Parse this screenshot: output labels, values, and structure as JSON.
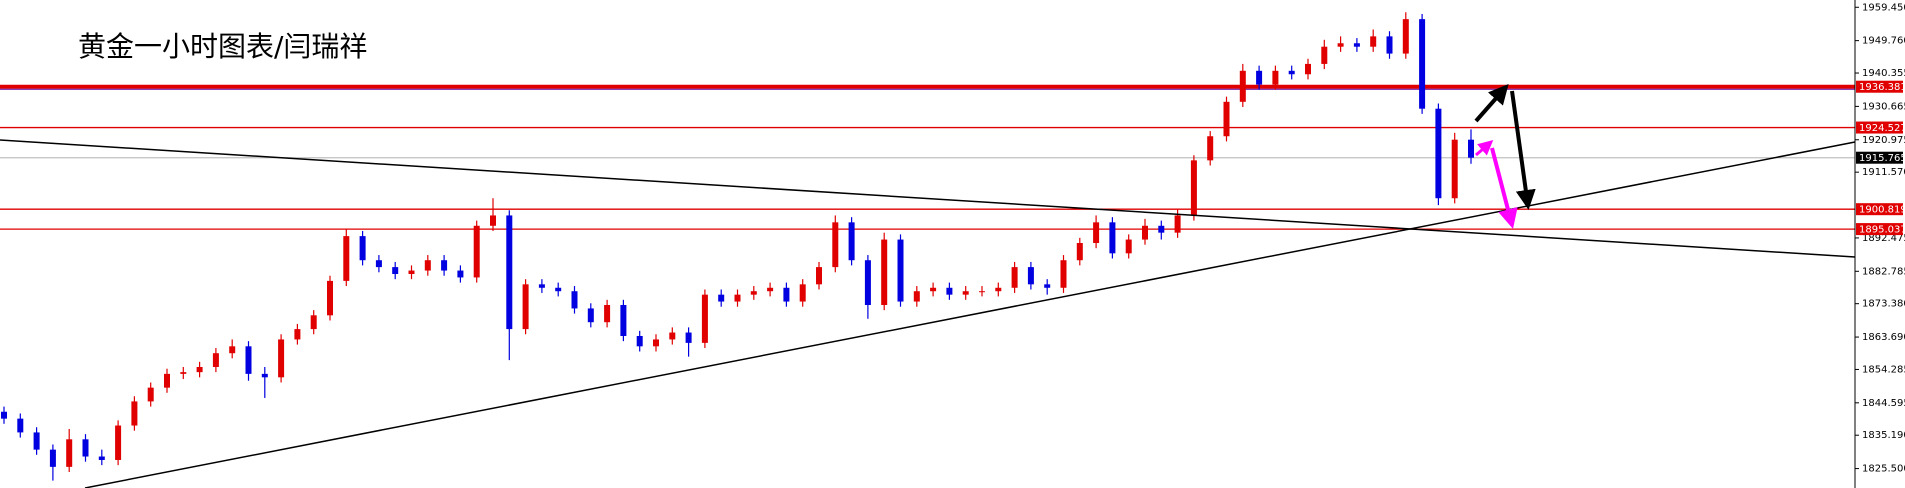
{
  "chart_data": {
    "type": "candlestick",
    "title": "黄金一小时图表/闫瑞祥",
    "up_color": "#e00000",
    "down_color": "#0000e0",
    "ylim": [
      1819.86,
      1961.56
    ],
    "yticks": [
      {
        "value": 1959.45,
        "label": "1959.450"
      },
      {
        "value": 1949.76,
        "label": "1949.760"
      },
      1940.355,
      1930.665,
      1920.975,
      {
        "value": 1911.57,
        "label": "1911.570"
      },
      1892.475,
      1882.785,
      {
        "value": 1873.38,
        "label": "1873.380"
      },
      {
        "value": 1863.69,
        "label": "1863.690"
      },
      1854.285,
      1844.595,
      {
        "value": 1835.19,
        "label": "1835.190"
      },
      {
        "value": 1825.5,
        "label": "1825.500"
      }
    ],
    "levels": [
      {
        "value": 1936.381,
        "color": "#e00000"
      },
      {
        "value": 1924.527,
        "color": "#e00000"
      },
      {
        "value": 1915.765,
        "color": "#000000"
      },
      {
        "value": 1900.819,
        "color": "#e00000"
      },
      {
        "value": 1895.037,
        "color": "#e00000"
      }
    ],
    "ohlc": [
      [
        1842,
        1843.5,
        1838.5,
        1840
      ],
      [
        1840,
        1841.5,
        1834.5,
        1836
      ],
      [
        1836,
        1837.5,
        1829.5,
        1831
      ],
      [
        1831,
        1832.5,
        1822,
        1826
      ],
      [
        1826,
        1837,
        1824.5,
        1834
      ],
      [
        1834,
        1835.5,
        1827.5,
        1829
      ],
      [
        1829,
        1831,
        1826.5,
        1828
      ],
      [
        1828,
        1839.5,
        1826.5,
        1838
      ],
      [
        1838,
        1846.5,
        1836.5,
        1845
      ],
      [
        1845,
        1850.5,
        1843.5,
        1849
      ],
      [
        1849,
        1854.5,
        1847.5,
        1853
      ],
      [
        1853,
        1855,
        1851.5,
        1853.5
      ],
      [
        1853.5,
        1856.5,
        1852,
        1855
      ],
      [
        1855,
        1860.5,
        1853.5,
        1859
      ],
      [
        1859,
        1863,
        1857.5,
        1861
      ],
      [
        1861,
        1862.5,
        1851,
        1853
      ],
      [
        1853,
        1855,
        1846,
        1852
      ],
      [
        1852,
        1864.5,
        1850.5,
        1863
      ],
      [
        1863,
        1867.5,
        1861.5,
        1866
      ],
      [
        1866,
        1871.5,
        1864.5,
        1870
      ],
      [
        1870,
        1881.5,
        1868.5,
        1880
      ],
      [
        1880,
        1895,
        1878.5,
        1893
      ],
      [
        1893,
        1894.5,
        1884.5,
        1886
      ],
      [
        1886,
        1887.5,
        1882.5,
        1884
      ],
      [
        1884,
        1885.5,
        1880.5,
        1882
      ],
      [
        1882,
        1884.5,
        1880.5,
        1883
      ],
      [
        1883,
        1887.5,
        1881.5,
        1886
      ],
      [
        1886,
        1887.5,
        1881.5,
        1883
      ],
      [
        1883,
        1884.5,
        1879.5,
        1881
      ],
      [
        1881,
        1897.5,
        1879.5,
        1896
      ],
      [
        1896,
        1904,
        1894.5,
        1899
      ],
      [
        1899,
        1900.5,
        1857,
        1866
      ],
      [
        1866,
        1880.5,
        1864.5,
        1879
      ],
      [
        1879,
        1880.5,
        1876.5,
        1878
      ],
      [
        1878,
        1879.5,
        1875.5,
        1877
      ],
      [
        1877,
        1878.5,
        1870.5,
        1872
      ],
      [
        1872,
        1873.5,
        1866.5,
        1868
      ],
      [
        1868,
        1874.5,
        1866.5,
        1873
      ],
      [
        1873,
        1874.5,
        1862.5,
        1864
      ],
      [
        1864,
        1865.5,
        1859.5,
        1861
      ],
      [
        1861,
        1864.5,
        1859.5,
        1863
      ],
      [
        1863,
        1866.5,
        1861.5,
        1865
      ],
      [
        1865,
        1866.5,
        1858,
        1862
      ],
      [
        1862,
        1877.5,
        1860.5,
        1876
      ],
      [
        1876,
        1877.5,
        1872.5,
        1874
      ],
      [
        1874,
        1877.5,
        1872.5,
        1876
      ],
      [
        1876,
        1878.5,
        1874.5,
        1877
      ],
      [
        1877,
        1879.5,
        1875.5,
        1878
      ],
      [
        1878,
        1879.5,
        1872.5,
        1874
      ],
      [
        1874,
        1880.5,
        1872.5,
        1879
      ],
      [
        1879,
        1885.5,
        1877.5,
        1884
      ],
      [
        1884,
        1899,
        1882.5,
        1897
      ],
      [
        1897,
        1898.5,
        1884.5,
        1886
      ],
      [
        1886,
        1887.5,
        1869,
        1873
      ],
      [
        1873,
        1894,
        1871.5,
        1892
      ],
      [
        1892,
        1893.5,
        1872.5,
        1874
      ],
      [
        1874,
        1878.5,
        1872.5,
        1877
      ],
      [
        1877,
        1879.5,
        1875.5,
        1878
      ],
      [
        1878,
        1879.5,
        1874.5,
        1876
      ],
      [
        1876,
        1878.5,
        1874.5,
        1877
      ],
      [
        1877,
        1878.5,
        1875.5,
        1877
      ],
      [
        1877,
        1879.5,
        1875.5,
        1878
      ],
      [
        1878,
        1885.5,
        1876.5,
        1884
      ],
      [
        1884,
        1885.5,
        1877.5,
        1879
      ],
      [
        1879,
        1880.5,
        1876,
        1878
      ],
      [
        1878,
        1887.5,
        1876.5,
        1886
      ],
      [
        1886,
        1892.5,
        1884.5,
        1891
      ],
      [
        1891,
        1899,
        1889.5,
        1897
      ],
      [
        1897,
        1898.5,
        1886.5,
        1888
      ],
      [
        1888,
        1893.5,
        1886.5,
        1892
      ],
      [
        1892,
        1898,
        1890.5,
        1896
      ],
      [
        1896,
        1897.5,
        1892,
        1894
      ],
      [
        1894,
        1901,
        1892.5,
        1899
      ],
      [
        1899,
        1916.5,
        1897.5,
        1915
      ],
      [
        1915,
        1923.5,
        1913.5,
        1922
      ],
      [
        1922,
        1933.5,
        1920.5,
        1932
      ],
      [
        1932,
        1943,
        1930.5,
        1941
      ],
      [
        1941,
        1942.5,
        1935.5,
        1937
      ],
      [
        1937,
        1942.5,
        1935.5,
        1941
      ],
      [
        1941,
        1942.5,
        1938.5,
        1940
      ],
      [
        1940,
        1944.5,
        1938.5,
        1943
      ],
      [
        1943,
        1950,
        1941.5,
        1948
      ],
      [
        1948,
        1951,
        1946.5,
        1949
      ],
      [
        1949,
        1950.5,
        1946.5,
        1948
      ],
      [
        1948,
        1953,
        1946.5,
        1951
      ],
      [
        1951,
        1952.5,
        1944.5,
        1946
      ],
      [
        1946,
        1958,
        1944.5,
        1956
      ],
      [
        1956,
        1957.5,
        1928.5,
        1930
      ],
      [
        1930,
        1931.5,
        1902,
        1904
      ],
      [
        1904,
        1923,
        1902.5,
        1921
      ],
      [
        1921,
        1924,
        1914,
        1915.765
      ]
    ]
  }
}
